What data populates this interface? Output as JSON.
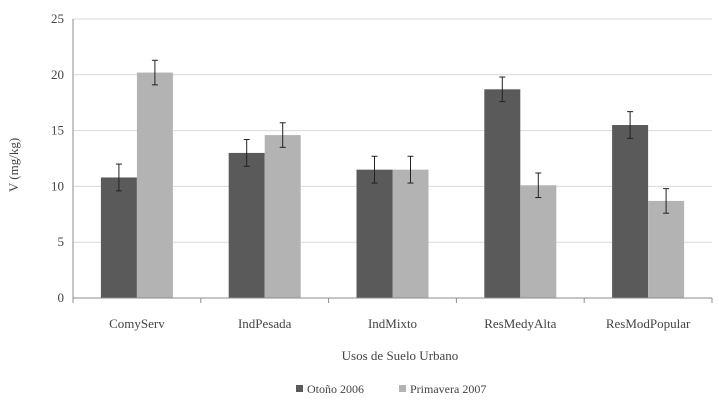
{
  "chart_data": {
    "type": "bar",
    "title": "",
    "xlabel": "Usos de Suelo Urbano",
    "ylabel": "V (mg/kg)",
    "ylim": [
      0,
      25
    ],
    "yticks": [
      0,
      5,
      10,
      15,
      20,
      25
    ],
    "grid": true,
    "legend_position": "bottom",
    "categories": [
      "ComyServ",
      "IndPesada",
      "IndMixto",
      "ResMedyAlta",
      "ResModPopular"
    ],
    "series": [
      {
        "name": "Otoño 2006",
        "color": "#5a5a5a",
        "values": [
          10.8,
          13.0,
          11.5,
          18.7,
          15.5
        ],
        "errors": [
          1.2,
          1.2,
          1.2,
          1.1,
          1.2
        ]
      },
      {
        "name": "Primavera 2007",
        "color": "#b3b3b3",
        "values": [
          20.2,
          14.6,
          11.5,
          10.1,
          8.7
        ],
        "errors": [
          1.1,
          1.1,
          1.2,
          1.1,
          1.1
        ]
      }
    ]
  }
}
